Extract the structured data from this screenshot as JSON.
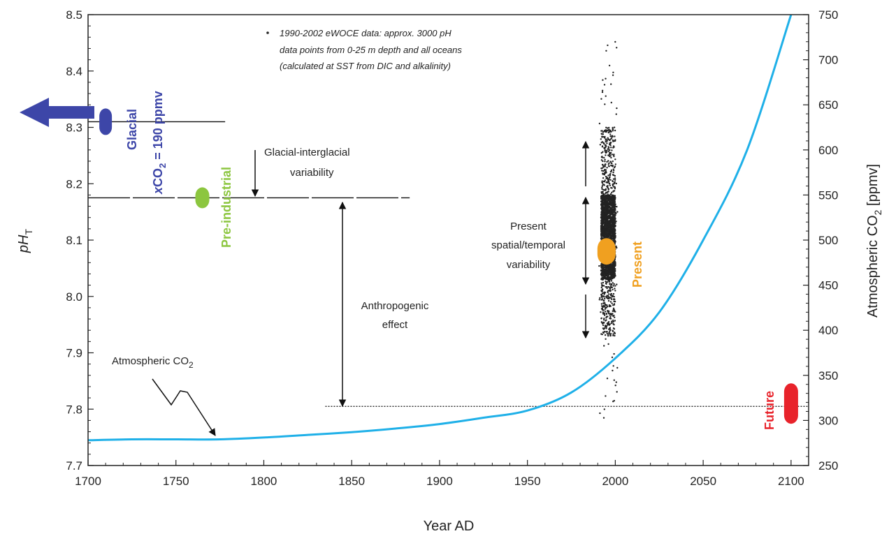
{
  "chart_data": {
    "type": "line",
    "title": "",
    "xlabel": "Year AD",
    "ylabel_left": "pH",
    "ylabel_left_sub": "T",
    "ylabel_right": "Atmospheric CO",
    "ylabel_right_sub": "2",
    "ylabel_right_unit": " [ppmv]",
    "xlim": [
      1700,
      2110
    ],
    "ylim_left": [
      7.7,
      8.5
    ],
    "ylim_right": [
      250,
      750
    ],
    "x_ticks": [
      1700,
      1750,
      1800,
      1850,
      1900,
      1950,
      2000,
      2050,
      2100
    ],
    "y_left_ticks": [
      "7.7",
      "7.8",
      "7.9",
      "8.0",
      "8.1",
      "8.2",
      "8.3",
      "8.4",
      "8.5"
    ],
    "y_right_ticks": [
      "250",
      "300",
      "350",
      "400",
      "450",
      "500",
      "550",
      "600",
      "650",
      "700",
      "750"
    ],
    "co2_curve": {
      "name": "Atmospheric CO",
      "name_sub": "2",
      "color": "#1fb0e8",
      "x": [
        1700,
        1725,
        1750,
        1775,
        1800,
        1825,
        1850,
        1875,
        1900,
        1925,
        1950,
        1975,
        2000,
        2025,
        2050,
        2075,
        2100
      ],
      "y": [
        278,
        279,
        279,
        279,
        281,
        284,
        287,
        291,
        296,
        303,
        311,
        331,
        369,
        420,
        500,
        600,
        750
      ]
    },
    "markers": [
      {
        "id": "glacial",
        "label": "Glacial",
        "x": 1710,
        "y": 8.31,
        "color": "#3d46a8"
      },
      {
        "id": "preindustrial",
        "label": "Pre-industrial",
        "x": 1765,
        "y": 8.175,
        "color": "#8cc63f"
      },
      {
        "id": "present",
        "label": "Present",
        "x": 1995,
        "y": 8.08,
        "color": "#f0a020"
      },
      {
        "id": "future",
        "label": "Future",
        "x": 2100,
        "y": 7.81,
        "color": "#e8232b"
      }
    ],
    "glacial_co2_label_prefix": "x",
    "glacial_co2_label_main": "CO",
    "glacial_co2_label_sub": "2",
    "glacial_co2_label_suffix": " = 190 ppmv",
    "reference_lines": [
      {
        "id": "glacial-line",
        "y": 8.31,
        "x_from": 1700,
        "x_to": 1778,
        "style": "solid"
      },
      {
        "id": "preindustrial-line",
        "y": 8.175,
        "x_from": 1700,
        "x_to": 1883,
        "style": "dashed"
      },
      {
        "id": "future-line",
        "y": 7.805,
        "x_from": 1835,
        "x_to": 2110,
        "style": "dotted"
      }
    ],
    "annotations": {
      "glacial_interglacial_line1": "Glacial-interglacial",
      "glacial_interglacial_line2": "variability",
      "anthropogenic_line1": "Anthropogenic",
      "anthropogenic_line2": "effect",
      "present_variability_line1": "Present",
      "present_variability_line2": "spatial/temporal",
      "present_variability_line3": "variability",
      "data_note_line1": "1990-2002 eWOCE data: approx. 3000 pH",
      "data_note_line2": "data points from 0-25 m depth and all oceans",
      "data_note_line3": "(calculated at SST from DIC and alkalinity)"
    },
    "scatter": {
      "x_center": 1996,
      "x_spread": 4,
      "y_dense_range": [
        8.03,
        8.18
      ],
      "y_sparse_range": [
        7.78,
        8.46
      ],
      "color": "#222222"
    }
  }
}
